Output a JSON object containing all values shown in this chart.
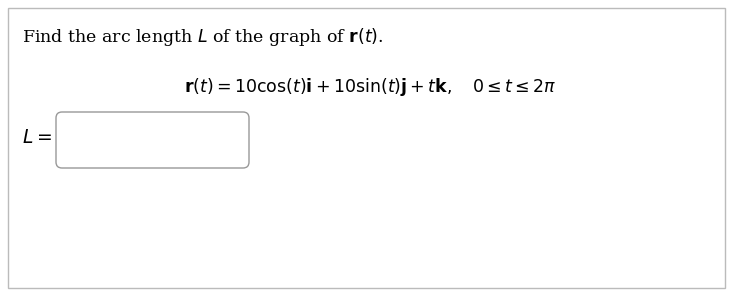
{
  "background_color": "#ffffff",
  "border_color": "#aaaaaa",
  "title_text": "Find the arc length $L$ of the graph of $\\mathbf{r}(t)$.",
  "equation_text": "$\\mathbf{r}(t) = 10\\cos(t)\\mathbf{i} + 10\\sin(t)\\mathbf{j} + t\\mathbf{k}, \\quad 0 \\leq t \\leq 2\\pi$",
  "label_text": "$L =$",
  "title_fontsize": 12.5,
  "eq_fontsize": 12.5,
  "label_fontsize": 13.5,
  "figwidth": 7.33,
  "figheight": 2.96,
  "dpi": 100
}
